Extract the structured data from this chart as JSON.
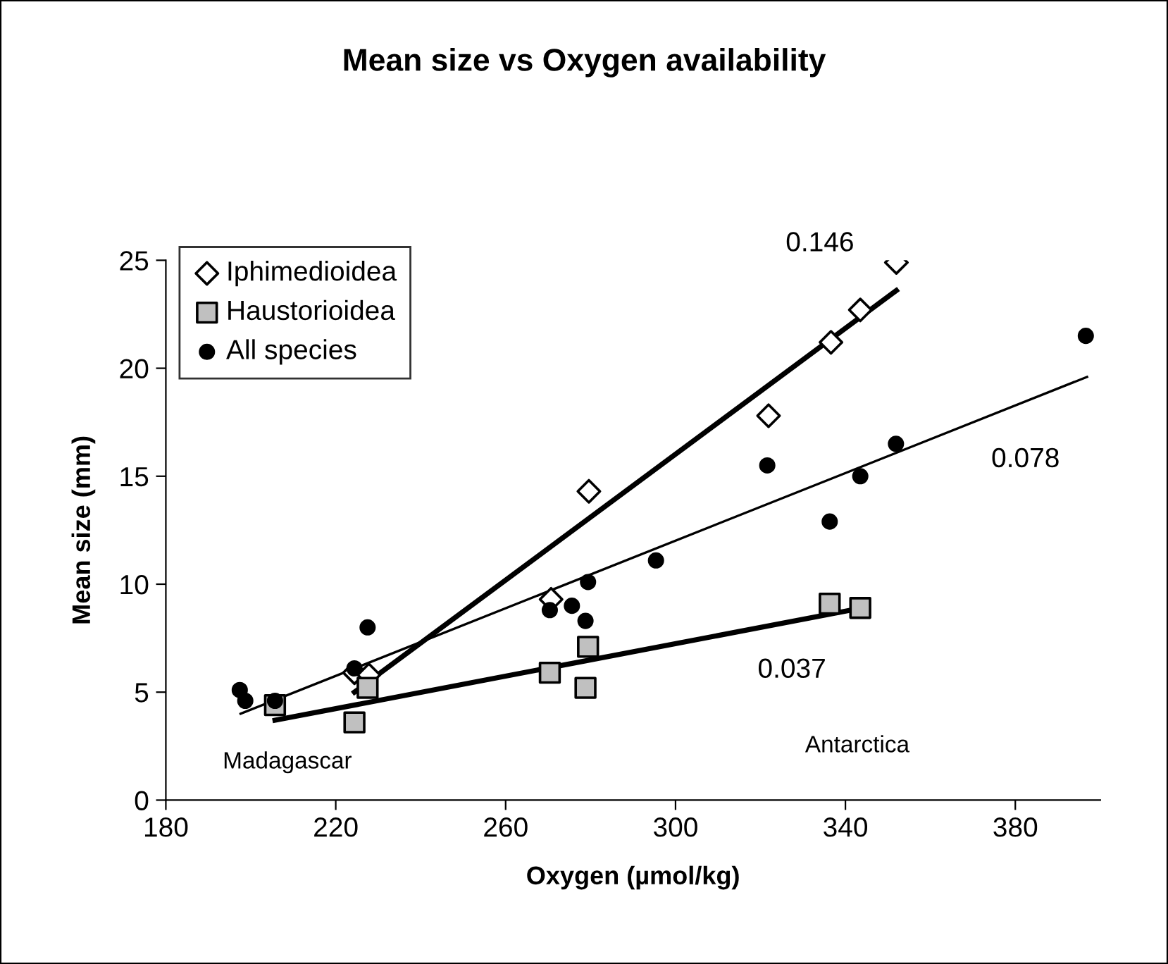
{
  "chart_data": {
    "type": "scatter",
    "title": "Mean size vs Oxygen availability",
    "xlabel": "Oxygen (µmol/kg)",
    "ylabel": "Mean size (mm)",
    "xlim": [
      180,
      400
    ],
    "xticks": [
      180,
      220,
      260,
      300,
      340,
      380
    ],
    "ylim": [
      0,
      25
    ],
    "yticks": [
      0,
      5,
      10,
      15,
      20,
      25
    ],
    "grid": false,
    "legend": "top left",
    "series": [
      {
        "name": "Iphimedioidea",
        "marker": "diamond",
        "color": "#ffffff",
        "x": [
          224.4,
          227.8,
          270.7,
          279.6,
          321.9,
          336.6,
          343.5,
          352
        ],
        "values": [
          5.9,
          5.8,
          9.3,
          14.3,
          17.8,
          21.2,
          22.7,
          24.9
        ]
      },
      {
        "name": "Haustorioidea",
        "marker": "square",
        "color": "#c0c0c0",
        "x": [
          205.7,
          224.4,
          227.5,
          270.4,
          279.4,
          278.8,
          336.3,
          343.5
        ],
        "values": [
          4.4,
          3.6,
          5.2,
          5.9,
          7.1,
          5.2,
          9.1,
          8.9
        ]
      },
      {
        "name": "All species",
        "marker": "circle",
        "color": "#000000",
        "x": [
          197.4,
          198.7,
          205.7,
          224.4,
          227.5,
          270.4,
          275.6,
          278.8,
          279.4,
          295.4,
          321.6,
          336.3,
          343.5,
          351.9,
          396.6
        ],
        "values": [
          5.1,
          4.6,
          4.6,
          6.1,
          8.0,
          8.8,
          9.0,
          8.3,
          10.1,
          11.1,
          15.5,
          12.9,
          15.0,
          16.5,
          21.5
        ]
      },
      {
        "type": "line",
        "color": "#000000",
        "line_style": "solid",
        "marker": "none",
        "x": [
          224.4,
          352
        ],
        "values": [
          5.0,
          23.6
        ]
      },
      {
        "type": "line",
        "color": "#000000",
        "line_style": "solid",
        "marker": "none",
        "x": [
          197.6,
          396.9
        ],
        "values": [
          4.0,
          19.6
        ]
      },
      {
        "type": "line",
        "color": "#000000",
        "line_style": "solid",
        "marker": "none",
        "x": [
          205.7,
          344
        ],
        "values": [
          3.7,
          8.9
        ]
      }
    ],
    "annotations": [
      "0.146",
      "0.078",
      "0.037",
      "Madagascar",
      "Antarctica"
    ]
  }
}
